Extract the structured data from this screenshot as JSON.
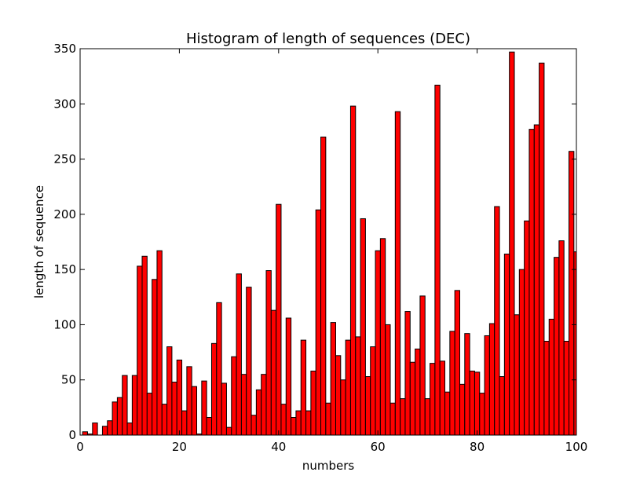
{
  "chart_data": {
    "type": "bar",
    "title": "Histogram of length of sequences (DEC)",
    "xlabel": "numbers",
    "ylabel": "length of sequence",
    "xlim": [
      0,
      100
    ],
    "ylim": [
      0,
      350
    ],
    "xticks": [
      0,
      20,
      40,
      60,
      80,
      100
    ],
    "yticks": [
      0,
      50,
      100,
      150,
      200,
      250,
      300,
      350
    ],
    "bar_color": "#ff0000",
    "bar_edge_color": "#000000",
    "bar_width": 1,
    "x": [
      1,
      2,
      3,
      4,
      5,
      6,
      7,
      8,
      9,
      10,
      11,
      12,
      13,
      14,
      15,
      16,
      17,
      18,
      19,
      20,
      21,
      22,
      23,
      24,
      25,
      26,
      27,
      28,
      29,
      30,
      31,
      32,
      33,
      34,
      35,
      36,
      37,
      38,
      39,
      40,
      41,
      42,
      43,
      44,
      45,
      46,
      47,
      48,
      49,
      50,
      51,
      52,
      53,
      54,
      55,
      56,
      57,
      58,
      59,
      60,
      61,
      62,
      63,
      64,
      65,
      66,
      67,
      68,
      69,
      70,
      71,
      72,
      73,
      74,
      75,
      76,
      77,
      78,
      79,
      80,
      81,
      82,
      83,
      84,
      85,
      86,
      87,
      88,
      89,
      90,
      91,
      92,
      93,
      94,
      95,
      96,
      97,
      98,
      99,
      100
    ],
    "values": [
      3,
      1,
      11,
      0,
      8,
      13,
      30,
      34,
      54,
      11,
      54,
      153,
      162,
      38,
      141,
      167,
      28,
      80,
      48,
      68,
      22,
      62,
      44,
      1,
      49,
      16,
      83,
      120,
      47,
      7,
      71,
      146,
      55,
      134,
      18,
      41,
      55,
      149,
      113,
      209,
      28,
      106,
      16,
      22,
      86,
      22,
      58,
      204,
      270,
      29,
      102,
      72,
      50,
      86,
      298,
      89,
      196,
      53,
      80,
      167,
      178,
      100,
      29,
      293,
      33,
      112,
      66,
      78,
      126,
      33,
      65,
      317,
      67,
      39,
      94,
      131,
      46,
      92,
      58,
      57,
      38,
      90,
      101,
      207,
      53,
      164,
      347,
      109,
      150,
      194,
      277,
      281,
      337,
      85,
      105,
      161,
      176,
      85,
      257,
      166
    ]
  }
}
